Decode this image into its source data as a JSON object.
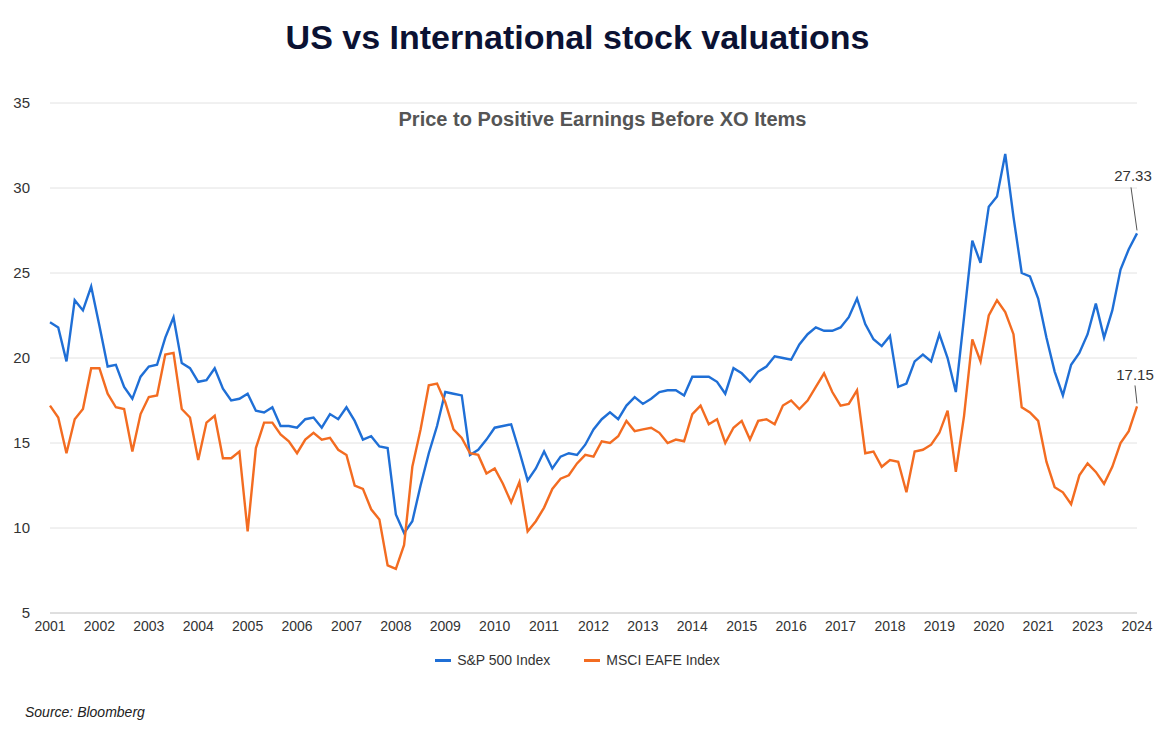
{
  "chart_data": {
    "type": "line",
    "title": "US vs International stock valuations",
    "subtitle": "Price to Positive Earnings Before XO Items",
    "source": "Source: Bloomberg",
    "categories": [
      "2001",
      null,
      null,
      null,
      null,
      null,
      "2002",
      null,
      null,
      null,
      null,
      null,
      "2003",
      null,
      null,
      null,
      null,
      null,
      "2004",
      null,
      null,
      null,
      null,
      null,
      "2005",
      null,
      null,
      null,
      null,
      null,
      "2006",
      null,
      null,
      null,
      null,
      null,
      "2007",
      null,
      null,
      null,
      null,
      null,
      "2008",
      null,
      null,
      null,
      null,
      null,
      "2009",
      null,
      null,
      null,
      null,
      null,
      "2010",
      null,
      null,
      null,
      null,
      null,
      "2011",
      null,
      null,
      null,
      null,
      null,
      "2012",
      null,
      null,
      null,
      null,
      null,
      "2013",
      null,
      null,
      null,
      null,
      null,
      "2014",
      null,
      null,
      null,
      null,
      null,
      "2015",
      null,
      null,
      null,
      null,
      null,
      "2016",
      null,
      null,
      null,
      null,
      null,
      "2017",
      null,
      null,
      null,
      null,
      null,
      "2018",
      null,
      null,
      null,
      null,
      null,
      "2019",
      null,
      null,
      null,
      null,
      null,
      "2020",
      null,
      null,
      null,
      null,
      null,
      "2021",
      null,
      null,
      null,
      null,
      null,
      "2023",
      null,
      null,
      null,
      null,
      null,
      "2024"
    ],
    "series": [
      {
        "name": "S&P 500 Index",
        "color": "#1f6fd6",
        "values": [
          22.1,
          21.8,
          19.8,
          23.4,
          22.8,
          24.2,
          21.9,
          19.5,
          19.6,
          18.3,
          17.6,
          18.9,
          19.5,
          19.6,
          21.2,
          22.4,
          19.7,
          19.4,
          18.6,
          18.7,
          19.4,
          18.2,
          17.5,
          17.6,
          17.9,
          16.9,
          16.8,
          17.1,
          16.0,
          16.0,
          15.9,
          16.4,
          16.5,
          15.9,
          16.7,
          16.4,
          17.1,
          16.3,
          15.2,
          15.4,
          14.8,
          14.7,
          10.8,
          9.7,
          10.4,
          12.5,
          14.4,
          16.0,
          18.0,
          17.9,
          17.8,
          14.3,
          14.6,
          15.2,
          15.9,
          16.0,
          16.1,
          14.5,
          12.8,
          13.5,
          14.5,
          13.5,
          14.2,
          14.4,
          14.3,
          14.9,
          15.8,
          16.4,
          16.8,
          16.4,
          17.2,
          17.7,
          17.3,
          17.6,
          18.0,
          18.1,
          18.1,
          17.8,
          18.9,
          18.9,
          18.9,
          18.6,
          17.9,
          19.4,
          19.1,
          18.6,
          19.2,
          19.5,
          20.1,
          20.0,
          19.9,
          20.8,
          21.4,
          21.8,
          21.6,
          21.6,
          21.8,
          22.4,
          23.5,
          22.0,
          21.1,
          20.7,
          21.3,
          18.3,
          18.5,
          19.8,
          20.2,
          19.8,
          21.4,
          20.0,
          18.0,
          22.4,
          26.9,
          25.6,
          28.9,
          29.5,
          32.0,
          28.3,
          25.0,
          24.8,
          23.5,
          21.2,
          19.2,
          17.8,
          19.6,
          20.3,
          21.4,
          23.2,
          21.2,
          22.8,
          25.2,
          26.4,
          27.33
        ]
      },
      {
        "name": "MSCI EAFE Index",
        "color": "#f36c21",
        "values": [
          17.2,
          16.5,
          14.4,
          16.4,
          17.0,
          19.4,
          19.4,
          17.9,
          17.1,
          17.0,
          14.5,
          16.7,
          17.7,
          17.8,
          20.2,
          20.3,
          17.0,
          16.5,
          14.0,
          16.2,
          16.6,
          14.1,
          14.1,
          14.5,
          9.8,
          14.7,
          16.2,
          16.2,
          15.5,
          15.1,
          14.4,
          15.2,
          15.6,
          15.2,
          15.3,
          14.6,
          14.3,
          12.5,
          12.3,
          11.1,
          10.5,
          7.8,
          7.6,
          9.0,
          13.6,
          15.8,
          18.4,
          18.5,
          17.4,
          15.8,
          15.3,
          14.4,
          14.3,
          13.2,
          13.5,
          12.6,
          11.5,
          12.7,
          9.8,
          10.4,
          11.2,
          12.3,
          12.9,
          13.1,
          13.8,
          14.3,
          14.2,
          15.1,
          15.0,
          15.4,
          16.3,
          15.7,
          15.8,
          15.9,
          15.6,
          15.0,
          15.2,
          15.1,
          16.7,
          17.2,
          16.1,
          16.4,
          15.0,
          15.9,
          16.3,
          15.2,
          16.3,
          16.4,
          16.1,
          17.2,
          17.5,
          17.0,
          17.5,
          18.3,
          19.1,
          18.0,
          17.2,
          17.3,
          18.1,
          14.4,
          14.5,
          13.6,
          14.0,
          13.9,
          12.1,
          14.5,
          14.6,
          14.9,
          15.6,
          16.9,
          13.3,
          16.6,
          21.1,
          19.8,
          22.5,
          23.4,
          22.7,
          21.4,
          17.1,
          16.8,
          16.3,
          13.9,
          12.4,
          12.1,
          11.4,
          13.1,
          13.8,
          13.3,
          12.6,
          13.6,
          15.0,
          15.7,
          17.15
        ]
      }
    ],
    "annotations": [
      {
        "text": "27.33",
        "series": "S&P 500 Index"
      },
      {
        "text": "17.15",
        "series": "MSCI EAFE Index"
      }
    ],
    "ylim": [
      5,
      35
    ],
    "yticks": [
      5,
      10,
      15,
      20,
      25,
      30,
      35
    ],
    "grid": true,
    "legend": "bottom"
  }
}
